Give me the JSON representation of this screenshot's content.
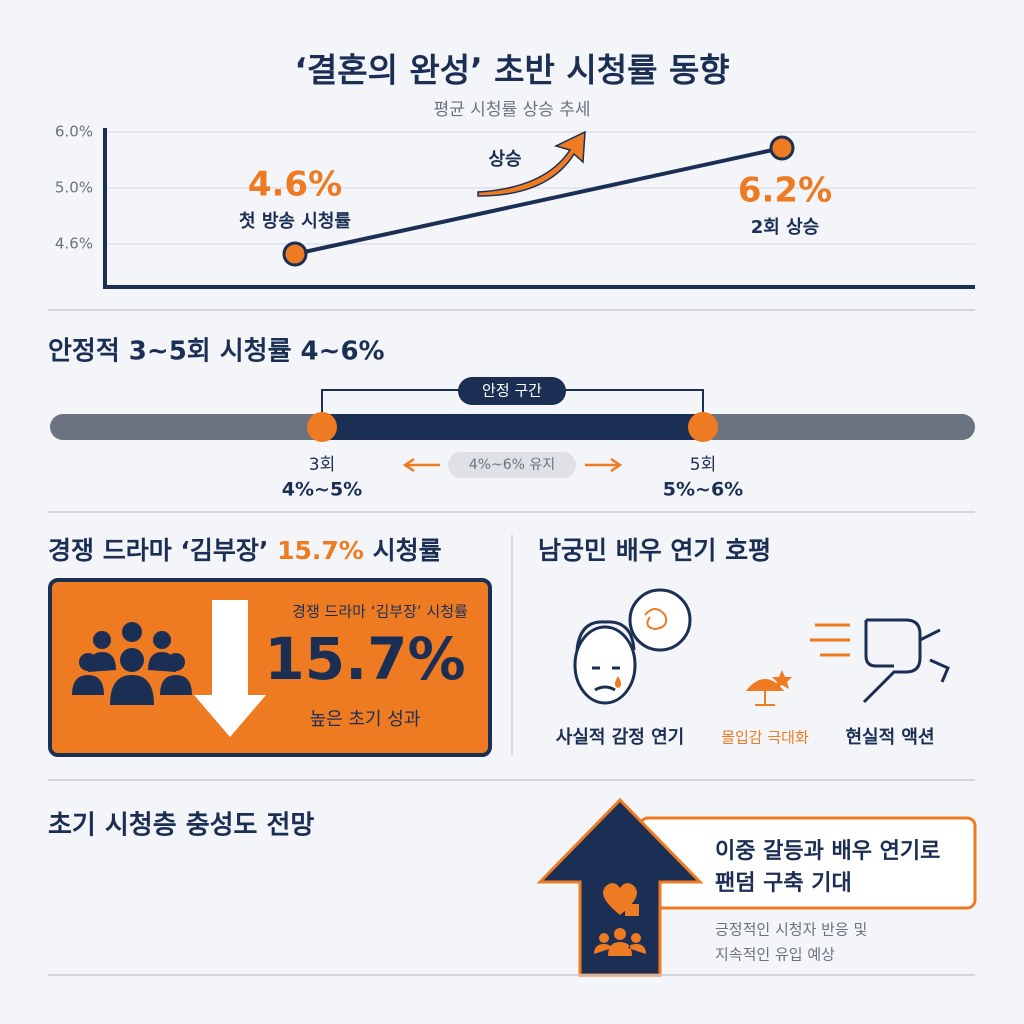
{
  "header": {
    "title": "‘결혼의 완성’ 초반 시청률 동향",
    "subtitle": "평균 시청률 상승 추세"
  },
  "trend_chart": {
    "y_labels": [
      "6.0%",
      "5.0%",
      "4.6%"
    ],
    "trend_label": "상승",
    "start": {
      "value": "4.6%",
      "label": "첫 방송 시청률"
    },
    "end": {
      "value": "6.2%",
      "label": "2회 상승"
    }
  },
  "stable": {
    "title": "안정적 3~5회 시청률 4~6%",
    "band_label": "안정 구간",
    "range_label": "4%~6% 유지",
    "left": {
      "episode": "3회",
      "range": "4%~5%"
    },
    "right": {
      "episode": "5회",
      "range": "5%~6%"
    }
  },
  "competitor": {
    "title_prefix": "경쟁 드라마 ‘김부장’",
    "title_highlight": "15.7%",
    "title_suffix": "시청률",
    "card_caption": "경쟁 드라마 ‘김부장’ 시청률",
    "card_value": "15.7%",
    "card_note": "높은 초기 성과"
  },
  "acting": {
    "title": "남궁민 배우 연기 호평",
    "items": [
      "사실적 감정 연기",
      "몰입감 극대화",
      "현실적 액션"
    ]
  },
  "outlook": {
    "title": "초기 시청층 충성도 전망",
    "headline": [
      "이중 갈등과 배우 연기로",
      "팬덤 구축 기대"
    ],
    "note": [
      "긍정적인 시청자 반응 및",
      "지속적인 유입 예상"
    ]
  }
}
